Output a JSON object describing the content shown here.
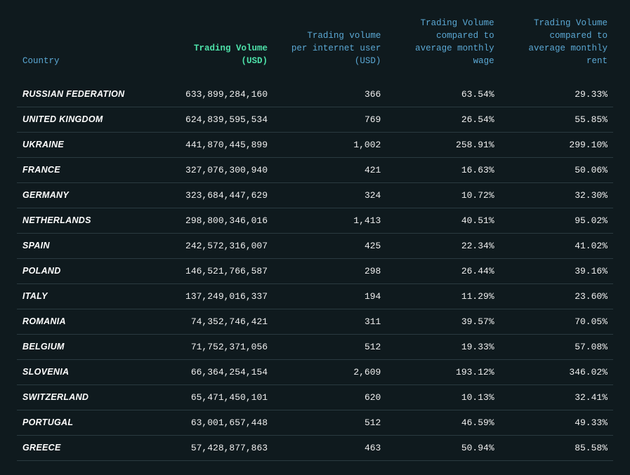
{
  "table": {
    "background_color": "#0f1a1e",
    "text_color": "#f0f0f0",
    "header_color": "#5ba8d4",
    "header_highlight_color": "#4de0a8",
    "row_border_color": "#2a3a40",
    "body_font": "monospace",
    "country_font": "Arial Black, italic",
    "header_fontsize": 12.5,
    "body_fontsize": 13,
    "columns": [
      {
        "key": "country",
        "label": "Country",
        "align": "left",
        "highlight": false,
        "width_pct": 22
      },
      {
        "key": "volume",
        "label": "Trading Volume (USD)",
        "align": "right",
        "highlight": true,
        "width_pct": 21
      },
      {
        "key": "per_user",
        "label": "Trading volume per internet user (USD)",
        "align": "right",
        "highlight": false,
        "width_pct": 19
      },
      {
        "key": "vs_wage",
        "label": "Trading Volume compared to average monthly wage",
        "align": "right",
        "highlight": false,
        "width_pct": 19
      },
      {
        "key": "vs_rent",
        "label": "Trading Volume compared to average monthly rent",
        "align": "right",
        "highlight": false,
        "width_pct": 19
      }
    ],
    "header_lines": {
      "country": [
        "",
        "",
        "Country"
      ],
      "volume": [
        "",
        "Trading Volume",
        "(USD)"
      ],
      "per_user": [
        "Trading volume",
        "per internet user",
        "(USD)"
      ],
      "vs_wage": [
        "Trading Volume",
        "compared to",
        "average monthly wage"
      ],
      "vs_rent": [
        "Trading Volume",
        "compared to",
        "average monthly rent"
      ]
    },
    "rows": [
      {
        "country": "RUSSIAN FEDERATION",
        "volume": "633,899,284,160",
        "per_user": "366",
        "vs_wage": "63.54%",
        "vs_rent": "29.33%"
      },
      {
        "country": "UNITED KINGDOM",
        "volume": "624,839,595,534",
        "per_user": "769",
        "vs_wage": "26.54%",
        "vs_rent": "55.85%"
      },
      {
        "country": "UKRAINE",
        "volume": "441,870,445,899",
        "per_user": "1,002",
        "vs_wage": "258.91%",
        "vs_rent": "299.10%"
      },
      {
        "country": "FRANCE",
        "volume": "327,076,300,940",
        "per_user": "421",
        "vs_wage": "16.63%",
        "vs_rent": "50.06%"
      },
      {
        "country": "GERMANY",
        "volume": "323,684,447,629",
        "per_user": "324",
        "vs_wage": "10.72%",
        "vs_rent": "32.30%"
      },
      {
        "country": "NETHERLANDS",
        "volume": "298,800,346,016",
        "per_user": "1,413",
        "vs_wage": "40.51%",
        "vs_rent": "95.02%"
      },
      {
        "country": "SPAIN",
        "volume": "242,572,316,007",
        "per_user": "425",
        "vs_wage": "22.34%",
        "vs_rent": "41.02%"
      },
      {
        "country": "POLAND",
        "volume": "146,521,766,587",
        "per_user": "298",
        "vs_wage": "26.44%",
        "vs_rent": "39.16%"
      },
      {
        "country": "ITALY",
        "volume": "137,249,016,337",
        "per_user": "194",
        "vs_wage": "11.29%",
        "vs_rent": "23.60%"
      },
      {
        "country": "ROMANIA",
        "volume": "74,352,746,421",
        "per_user": "311",
        "vs_wage": "39.57%",
        "vs_rent": "70.05%"
      },
      {
        "country": "BELGIUM",
        "volume": "71,752,371,056",
        "per_user": "512",
        "vs_wage": "19.33%",
        "vs_rent": "57.08%"
      },
      {
        "country": "SLOVENIA",
        "volume": "66,364,254,154",
        "per_user": "2,609",
        "vs_wage": "193.12%",
        "vs_rent": "346.02%"
      },
      {
        "country": "SWITZERLAND",
        "volume": "65,471,450,101",
        "per_user": "620",
        "vs_wage": "10.13%",
        "vs_rent": "32.41%"
      },
      {
        "country": "PORTUGAL",
        "volume": "63,001,657,448",
        "per_user": "512",
        "vs_wage": "46.59%",
        "vs_rent": "49.33%"
      },
      {
        "country": "GREECE",
        "volume": "57,428,877,863",
        "per_user": "463",
        "vs_wage": "50.94%",
        "vs_rent": "85.58%"
      }
    ]
  }
}
